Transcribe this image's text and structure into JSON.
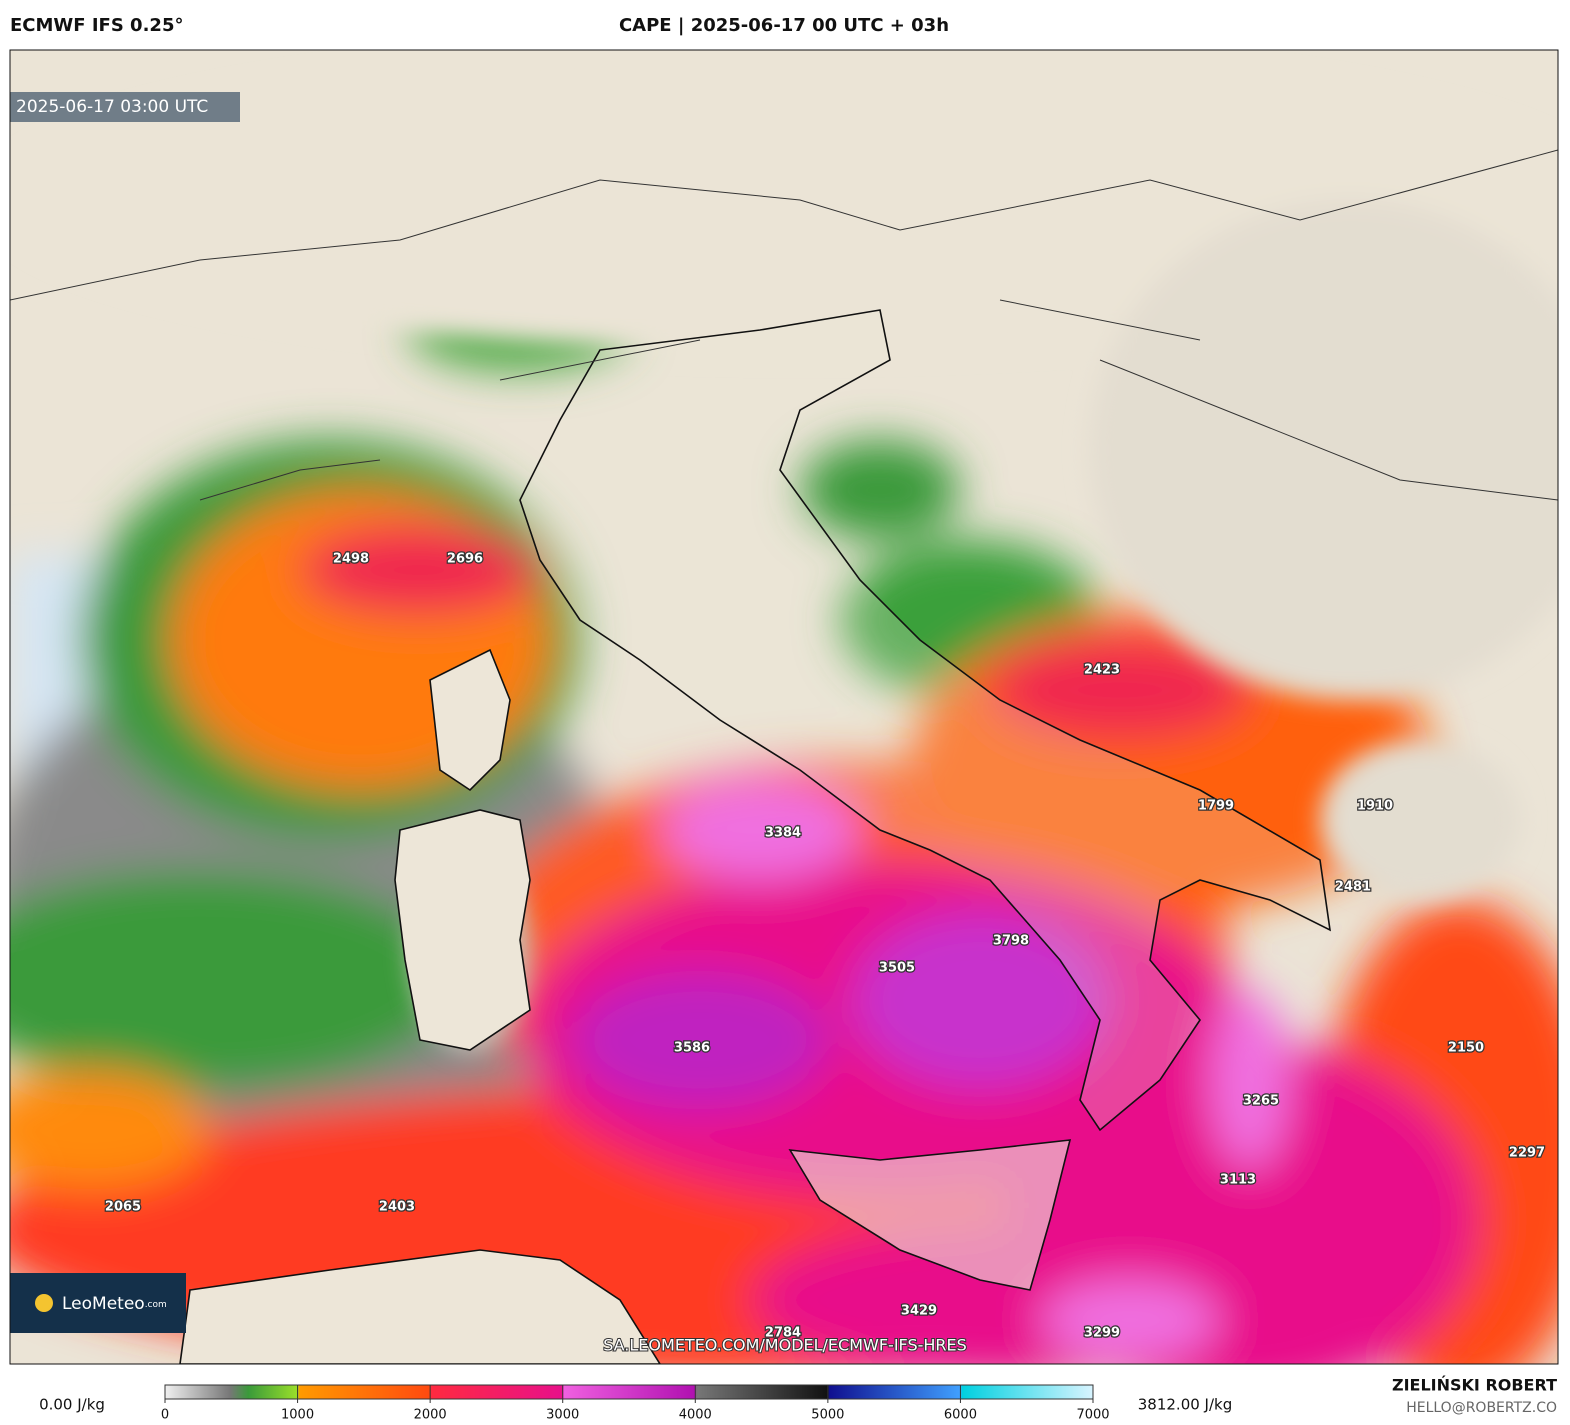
{
  "header": {
    "model": "ECMWF IFS 0.25°",
    "title": "CAPE | 2025-06-17 00 UTC + 03h"
  },
  "map": {
    "timestamp": "2025-06-17 03:00 UTC",
    "value_labels": [
      2498,
      2696,
      2423,
      3384,
      1799,
      1910,
      2481,
      3798,
      3505,
      3586,
      2150,
      3265,
      2297,
      3113,
      2065,
      2403,
      3429,
      2784,
      3299
    ],
    "watermark": "SA.LEOMETEO.COM/MODEL/ECMWF-IFS-HRES",
    "logo": "LeoMeteo",
    "logo_suffix": ".com"
  },
  "colorbar": {
    "ticks": [
      0,
      1000,
      2000,
      3000,
      4000,
      5000,
      6000,
      7000
    ],
    "min_label": "0.00 J/kg",
    "max_label": "3812.00 J/kg"
  },
  "credits": {
    "author": "ZIELIŃSKI ROBERT",
    "email": "HELLO@ROBERTZ.CO"
  }
}
